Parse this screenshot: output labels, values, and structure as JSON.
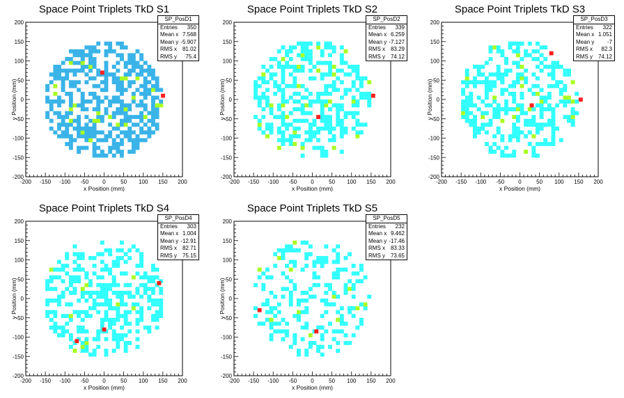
{
  "chart_data": [
    {
      "type": "heatmap",
      "title": "Space Point Triplets TkD S1",
      "xlabel": "x Position (mm)",
      "ylabel": "y Position (mm)",
      "xlim": [
        -200,
        200
      ],
      "ylim": [
        -200,
        200
      ],
      "xticks": [
        "-200",
        "-150",
        "-100",
        "-50",
        "0",
        "50",
        "100",
        "150",
        "200"
      ],
      "yticks": [
        "-200",
        "-150",
        "-100",
        "-50",
        "0",
        "50",
        "100",
        "150",
        "200"
      ],
      "stats": {
        "name": "SP_PosD1",
        "rows": [
          [
            "Entries",
            "350"
          ],
          [
            "Mean x",
            "7.568"
          ],
          [
            "Mean y",
            "-5.907"
          ],
          [
            "RMS x",
            "81.02"
          ],
          [
            "RMS y",
            "75.4"
          ]
        ]
      },
      "fill_fraction": 0.55,
      "dominant_color": "#3ab4e8",
      "seed": 11,
      "hot_cells": [
        [
          -10,
          65
        ],
        [
          145,
          5
        ]
      ]
    },
    {
      "type": "heatmap",
      "title": "Space Point Triplets TkD S2",
      "xlabel": "x Position (mm)",
      "ylabel": "y Position (mm)",
      "xlim": [
        -200,
        200
      ],
      "ylim": [
        -200,
        200
      ],
      "xticks": [
        "-200",
        "-150",
        "-100",
        "-50",
        "0",
        "50",
        "100",
        "150",
        "200"
      ],
      "yticks": [
        "-200",
        "-150",
        "-100",
        "-50",
        "0",
        "50",
        "100",
        "150",
        "200"
      ],
      "stats": {
        "name": "SP_PosD2",
        "rows": [
          [
            "Entries",
            "339"
          ],
          [
            "Mean x",
            "6.259"
          ],
          [
            "Mean y",
            "-7.127"
          ],
          [
            "RMS x",
            "83.29"
          ],
          [
            "RMS y",
            "74.12"
          ]
        ]
      },
      "fill_fraction": 0.45,
      "dominant_color": "#33ffff",
      "seed": 23,
      "hot_cells": [
        [
          150,
          5
        ],
        [
          10,
          -50
        ]
      ]
    },
    {
      "type": "heatmap",
      "title": "Space Point Triplets TkD S3",
      "xlabel": "x Position (mm)",
      "ylabel": "y Position (mm)",
      "xlim": [
        -200,
        200
      ],
      "ylim": [
        -200,
        200
      ],
      "xticks": [
        "-200",
        "-150",
        "-100",
        "-50",
        "0",
        "50",
        "100",
        "150",
        "200"
      ],
      "yticks": [
        "-200",
        "-150",
        "-100",
        "-50",
        "0",
        "50",
        "100",
        "150",
        "200"
      ],
      "stats": {
        "name": "SP_PosD3",
        "rows": [
          [
            "Entries",
            "322"
          ],
          [
            "Mean x",
            "1.051"
          ],
          [
            "Mean y",
            "-7"
          ],
          [
            "RMS x",
            "82.3"
          ],
          [
            "RMS y",
            "74.12"
          ]
        ]
      },
      "fill_fraction": 0.43,
      "dominant_color": "#33ffff",
      "seed": 37,
      "hot_cells": [
        [
          75,
          115
        ],
        [
          25,
          -20
        ],
        [
          150,
          -5
        ]
      ]
    },
    {
      "type": "heatmap",
      "title": "Space Point Triplets TkD S4",
      "xlabel": "x Position (mm)",
      "ylabel": "y Position (mm)",
      "xlim": [
        -200,
        200
      ],
      "ylim": [
        -200,
        200
      ],
      "xticks": [
        "-200",
        "-150",
        "-100",
        "-50",
        "0",
        "50",
        "100",
        "150",
        "200"
      ],
      "yticks": [
        "-200",
        "-150",
        "-100",
        "-50",
        "0",
        "50",
        "100",
        "150",
        "200"
      ],
      "stats": {
        "name": "SP_PosD4",
        "rows": [
          [
            "Entries",
            "303"
          ],
          [
            "Mean x",
            "1.004"
          ],
          [
            "Mean y",
            "-12.91"
          ],
          [
            "RMS x",
            "82.71"
          ],
          [
            "RMS y",
            "75.15"
          ]
        ]
      },
      "fill_fraction": 0.4,
      "dominant_color": "#33ffff",
      "seed": 53,
      "hot_cells": [
        [
          135,
          35
        ],
        [
          -5,
          -85
        ],
        [
          -75,
          -115
        ]
      ]
    },
    {
      "type": "heatmap",
      "title": "Space Point Triplets TkD S5",
      "xlabel": "x Position (mm)",
      "ylabel": "y Position (mm)",
      "xlim": [
        -200,
        200
      ],
      "ylim": [
        -200,
        200
      ],
      "xticks": [
        "-200",
        "-150",
        "-100",
        "-50",
        "0",
        "50",
        "100",
        "150",
        "200"
      ],
      "yticks": [
        "-200",
        "-150",
        "-100",
        "-50",
        "0",
        "50",
        "100",
        "150",
        "200"
      ],
      "stats": {
        "name": "SP_PosD5",
        "rows": [
          [
            "Entries",
            "232"
          ],
          [
            "Mean x",
            "9.462"
          ],
          [
            "Mean y",
            "-17.46"
          ],
          [
            "RMS x",
            "83.33"
          ],
          [
            "RMS y",
            "73.65"
          ]
        ]
      },
      "fill_fraction": 0.3,
      "dominant_color": "#33ffff",
      "seed": 71,
      "hot_cells": [
        [
          -140,
          -35
        ],
        [
          5,
          -90
        ]
      ]
    }
  ],
  "colors": {
    "cyan": "#33ffff",
    "blue": "#3ab4e8",
    "green": "#aaff22",
    "red": "#ff1f1f"
  }
}
